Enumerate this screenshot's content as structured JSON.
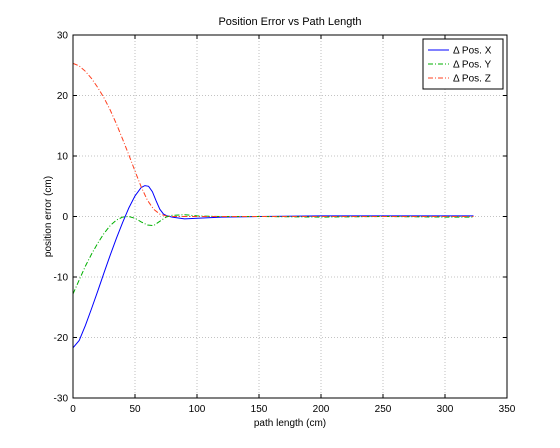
{
  "chart_data": {
    "type": "line",
    "title": "Position Error vs Path Length",
    "xlabel": "path length (cm)",
    "ylabel": "position error (cm)",
    "xlim": [
      0,
      350
    ],
    "ylim": [
      -30,
      30
    ],
    "xticks": [
      0,
      50,
      100,
      150,
      200,
      250,
      300,
      350
    ],
    "yticks": [
      -30,
      -20,
      -10,
      0,
      10,
      20,
      30
    ],
    "grid": true,
    "legend_position": "top-right",
    "series": [
      {
        "name": "Δ Pos. X",
        "color": "#0000ff",
        "style": "solid",
        "x": [
          0,
          5,
          10,
          15,
          20,
          25,
          30,
          35,
          40,
          45,
          50,
          55,
          58,
          61,
          64,
          67,
          70,
          73,
          76,
          80,
          90,
          100,
          120,
          150,
          200,
          250,
          300,
          323
        ],
        "y": [
          -21.7,
          -20.5,
          -18,
          -15.2,
          -12.3,
          -9.3,
          -6.4,
          -3.6,
          -1,
          1.4,
          3.4,
          4.8,
          5.1,
          5.0,
          4.1,
          2.6,
          1.2,
          0.4,
          0.1,
          -0.1,
          -0.4,
          -0.3,
          -0.1,
          0,
          0.1,
          0.1,
          0.1,
          0.1
        ]
      },
      {
        "name": "Δ Pos. Y",
        "color": "#00b000",
        "style": "dashdot",
        "x": [
          0,
          5,
          10,
          15,
          20,
          25,
          30,
          35,
          40,
          45,
          50,
          55,
          60,
          65,
          70,
          75,
          80,
          90,
          100,
          120,
          150,
          200,
          250,
          300,
          323
        ],
        "y": [
          -12.8,
          -10.5,
          -8.2,
          -6.2,
          -4.4,
          -2.8,
          -1.5,
          -0.6,
          -0.1,
          0,
          -0.3,
          -0.9,
          -1.4,
          -1.5,
          -0.8,
          -0.1,
          0.2,
          0.3,
          0.1,
          0,
          0,
          -0.1,
          0,
          -0.1,
          -0.1
        ]
      },
      {
        "name": "Δ Pos. Z",
        "color": "#ff4020",
        "style": "dashdot",
        "x": [
          0,
          5,
          10,
          15,
          20,
          25,
          30,
          35,
          40,
          45,
          50,
          55,
          60,
          65,
          70,
          75,
          80,
          90,
          100,
          120,
          150,
          200,
          250,
          300,
          323
        ],
        "y": [
          25.3,
          24.9,
          24,
          22.8,
          21.3,
          19.6,
          17.6,
          15.3,
          12.8,
          10.2,
          7.5,
          4.9,
          2.7,
          1.2,
          0.4,
          0.1,
          0,
          0,
          0,
          0,
          0,
          0,
          0,
          0,
          0
        ]
      }
    ]
  }
}
